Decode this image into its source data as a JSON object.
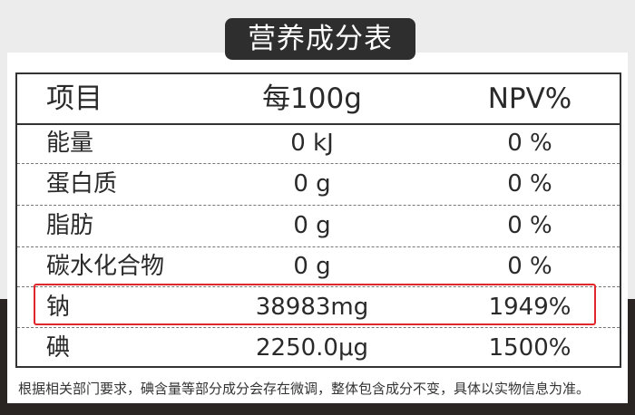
{
  "title": "营养成分表",
  "header": {
    "item": "项目",
    "per100g": "每100g",
    "npv": "NPV%"
  },
  "rows": [
    {
      "item": "能量",
      "value": "0 kJ",
      "npv": "0 %"
    },
    {
      "item": "蛋白质",
      "value": "0 g",
      "npv": "0 %"
    },
    {
      "item": "脂肪",
      "value": "0 g",
      "npv": "0 %"
    },
    {
      "item": "碳水化合物",
      "value": "0 g",
      "npv": "0 %"
    },
    {
      "item": "钠",
      "value": "38983mg",
      "npv": "1949%",
      "highlighted": true
    },
    {
      "item": "碘",
      "value": "2250.0μg",
      "npv": "1500%"
    }
  ],
  "footnote": "根据相关部门要求，碘含量等部分成分会存在微调，整体包含成分不变，具体以实物信息为准。",
  "colors": {
    "highlight": "#e0262a",
    "title_bg": "#2e2e2e"
  }
}
